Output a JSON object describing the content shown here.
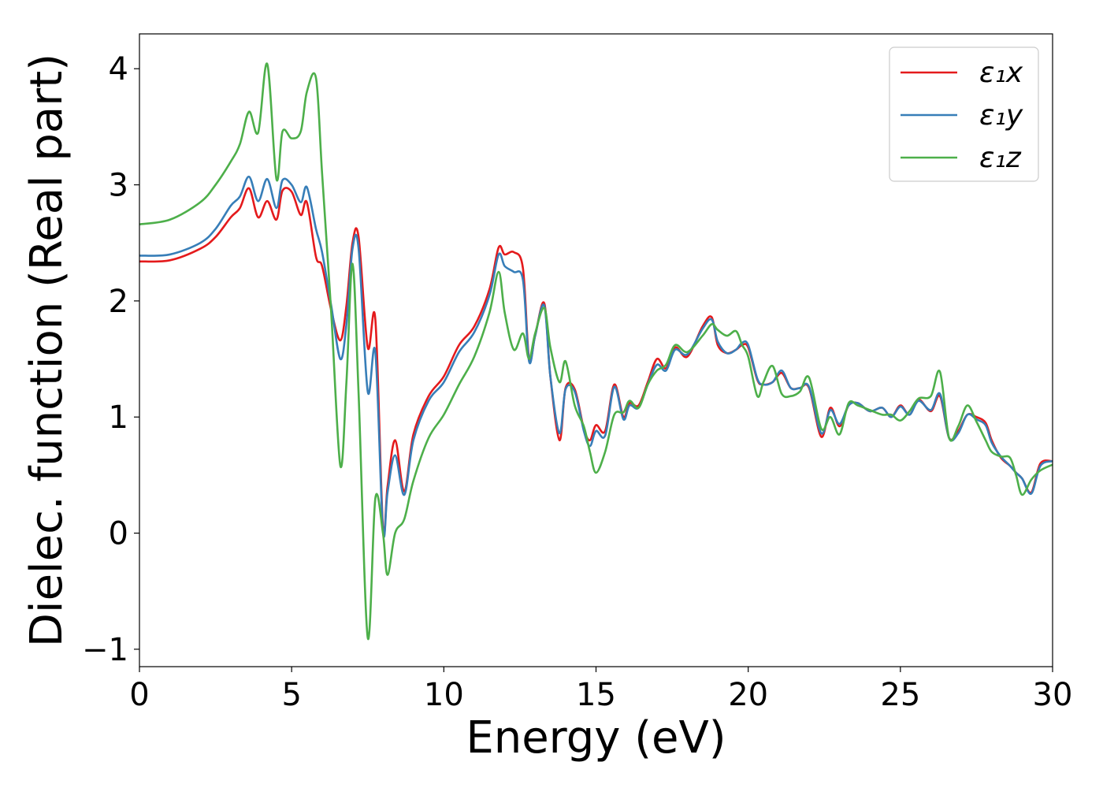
{
  "chart_data": {
    "type": "line",
    "xlabel": "Energy (eV)",
    "ylabel": "Dielec. function (Real part)",
    "xlim": [
      0,
      30
    ],
    "ylim": [
      -1.15,
      4.3
    ],
    "xticks": [
      0,
      5,
      10,
      15,
      20,
      25,
      30
    ],
    "xtick_labels": [
      "0",
      "5",
      "10",
      "15",
      "20",
      "25",
      "30"
    ],
    "yticks": [
      -1,
      0,
      1,
      2,
      3,
      4
    ],
    "ytick_labels": [
      "−1",
      "0",
      "1",
      "2",
      "3",
      "4"
    ],
    "grid": false,
    "legend_position": "top-right",
    "series": [
      {
        "name": "ε₁x",
        "color": "#e41a1c",
        "x": [
          0,
          1,
          2,
          2.5,
          3,
          3.3,
          3.6,
          3.9,
          4.2,
          4.5,
          4.7,
          5.0,
          5.3,
          5.5,
          5.8,
          6.0,
          6.3,
          6.6,
          6.8,
          7.0,
          7.2,
          7.5,
          7.75,
          8.0,
          8.15,
          8.4,
          8.7,
          9.0,
          9.5,
          10,
          10.5,
          11,
          11.5,
          11.8,
          12.0,
          12.3,
          12.6,
          12.8,
          13.0,
          13.3,
          13.5,
          13.8,
          14.0,
          14.3,
          14.6,
          14.8,
          15.0,
          15.3,
          15.6,
          15.9,
          16.1,
          16.4,
          16.7,
          17.0,
          17.3,
          17.6,
          18.0,
          18.5,
          18.8,
          19.0,
          19.3,
          19.6,
          19.8,
          20.0,
          20.3,
          20.5,
          20.8,
          21.1,
          21.4,
          21.7,
          22.0,
          22.4,
          22.7,
          23.0,
          23.3,
          23.6,
          24.0,
          24.4,
          24.7,
          25.0,
          25.3,
          25.6,
          26.0,
          26.3,
          26.6,
          26.9,
          27.2,
          27.5,
          27.8,
          28.0,
          28.3,
          28.6,
          28.8,
          29.0,
          29.3,
          29.6,
          30.0
        ],
        "y": [
          2.34,
          2.35,
          2.45,
          2.55,
          2.72,
          2.8,
          2.97,
          2.72,
          2.86,
          2.7,
          2.95,
          2.94,
          2.74,
          2.85,
          2.38,
          2.3,
          1.92,
          1.66,
          1.96,
          2.5,
          2.55,
          1.6,
          1.84,
          0.05,
          0.4,
          0.8,
          0.36,
          0.85,
          1.18,
          1.35,
          1.62,
          1.78,
          2.1,
          2.46,
          2.4,
          2.42,
          2.28,
          1.5,
          1.7,
          1.98,
          1.35,
          0.8,
          1.25,
          1.24,
          0.9,
          0.8,
          0.93,
          0.88,
          1.28,
          1.0,
          1.12,
          1.1,
          1.3,
          1.5,
          1.42,
          1.6,
          1.52,
          1.78,
          1.86,
          1.62,
          1.55,
          1.58,
          1.62,
          1.6,
          1.32,
          1.28,
          1.3,
          1.38,
          1.25,
          1.25,
          1.25,
          0.83,
          1.08,
          0.92,
          1.1,
          1.12,
          1.05,
          1.08,
          1.0,
          1.1,
          1.02,
          1.15,
          1.05,
          1.18,
          0.82,
          0.88,
          1.02,
          1.0,
          0.95,
          0.8,
          0.65,
          0.58,
          0.52,
          0.47,
          0.35,
          0.6,
          0.62
        ]
      },
      {
        "name": "ε₁y",
        "color": "#377eb8",
        "x": [
          0,
          1,
          2,
          2.5,
          3,
          3.3,
          3.6,
          3.9,
          4.2,
          4.5,
          4.7,
          5.0,
          5.3,
          5.5,
          5.8,
          6.0,
          6.3,
          6.6,
          6.8,
          7.0,
          7.2,
          7.5,
          7.75,
          8.0,
          8.15,
          8.4,
          8.7,
          9.0,
          9.5,
          10,
          10.5,
          11,
          11.5,
          11.8,
          12.0,
          12.3,
          12.6,
          12.8,
          13.0,
          13.3,
          13.5,
          13.8,
          14.0,
          14.3,
          14.6,
          14.8,
          15.0,
          15.3,
          15.6,
          15.9,
          16.1,
          16.4,
          16.7,
          17.0,
          17.3,
          17.6,
          18.0,
          18.5,
          18.8,
          19.0,
          19.3,
          19.6,
          19.8,
          20.0,
          20.3,
          20.5,
          20.8,
          21.1,
          21.4,
          21.7,
          22.0,
          22.4,
          22.7,
          23.0,
          23.3,
          23.6,
          24.0,
          24.4,
          24.7,
          25.0,
          25.3,
          25.6,
          26.0,
          26.3,
          26.6,
          26.9,
          27.2,
          27.5,
          27.8,
          28.0,
          28.3,
          28.6,
          28.8,
          29.0,
          29.3,
          29.6,
          30.0
        ],
        "y": [
          2.39,
          2.4,
          2.5,
          2.62,
          2.82,
          2.9,
          3.07,
          2.86,
          3.05,
          2.8,
          3.04,
          3.0,
          2.85,
          2.98,
          2.62,
          2.42,
          1.96,
          1.5,
          1.8,
          2.45,
          2.45,
          1.22,
          1.56,
          0.02,
          0.35,
          0.67,
          0.33,
          0.8,
          1.14,
          1.3,
          1.56,
          1.73,
          2.05,
          2.4,
          2.3,
          2.25,
          2.18,
          1.48,
          1.7,
          1.96,
          1.35,
          0.86,
          1.24,
          1.22,
          0.88,
          0.75,
          0.88,
          0.84,
          1.26,
          0.98,
          1.1,
          1.08,
          1.28,
          1.45,
          1.4,
          1.58,
          1.54,
          1.76,
          1.84,
          1.65,
          1.55,
          1.58,
          1.64,
          1.62,
          1.33,
          1.28,
          1.3,
          1.4,
          1.25,
          1.25,
          1.26,
          0.86,
          1.06,
          0.94,
          1.1,
          1.12,
          1.05,
          1.08,
          1.0,
          1.09,
          1.02,
          1.14,
          1.06,
          1.2,
          0.82,
          0.86,
          1.02,
          0.98,
          0.93,
          0.78,
          0.66,
          0.58,
          0.52,
          0.47,
          0.34,
          0.58,
          0.62
        ]
      },
      {
        "name": "ε₁z",
        "color": "#4daf4a",
        "x": [
          0,
          1,
          2,
          2.5,
          3,
          3.3,
          3.6,
          3.9,
          4.2,
          4.5,
          4.7,
          5.0,
          5.3,
          5.5,
          5.8,
          6.0,
          6.3,
          6.6,
          6.8,
          7.0,
          7.2,
          7.5,
          7.75,
          8.0,
          8.15,
          8.4,
          8.7,
          9.0,
          9.5,
          10,
          10.5,
          11,
          11.5,
          11.8,
          12.0,
          12.3,
          12.6,
          12.8,
          13.0,
          13.3,
          13.5,
          13.8,
          14.0,
          14.3,
          14.6,
          14.8,
          15.0,
          15.3,
          15.6,
          15.9,
          16.1,
          16.4,
          16.7,
          17.0,
          17.3,
          17.6,
          18.0,
          18.5,
          18.8,
          19.0,
          19.3,
          19.6,
          19.8,
          20.0,
          20.3,
          20.5,
          20.8,
          21.1,
          21.4,
          21.7,
          22.0,
          22.4,
          22.7,
          23.0,
          23.3,
          23.6,
          24.0,
          24.4,
          24.7,
          25.0,
          25.3,
          25.6,
          26.0,
          26.3,
          26.6,
          26.9,
          27.2,
          27.5,
          27.8,
          28.0,
          28.3,
          28.6,
          28.8,
          29.0,
          29.3,
          29.6,
          30.0
        ],
        "y": [
          2.66,
          2.7,
          2.85,
          3.0,
          3.2,
          3.35,
          3.63,
          3.45,
          4.04,
          3.05,
          3.46,
          3.4,
          3.46,
          3.8,
          3.92,
          3.1,
          1.9,
          0.58,
          1.3,
          2.32,
          1.2,
          -0.9,
          0.3,
          0.0,
          -0.36,
          0.0,
          0.12,
          0.45,
          0.82,
          1.02,
          1.28,
          1.52,
          1.9,
          2.25,
          1.9,
          1.58,
          1.72,
          1.5,
          1.72,
          1.94,
          1.6,
          1.3,
          1.48,
          1.1,
          0.92,
          0.7,
          0.52,
          0.7,
          1.02,
          1.04,
          1.14,
          1.08,
          1.28,
          1.4,
          1.45,
          1.62,
          1.56,
          1.7,
          1.8,
          1.75,
          1.7,
          1.74,
          1.62,
          1.52,
          1.18,
          1.3,
          1.44,
          1.2,
          1.18,
          1.22,
          1.34,
          0.9,
          1.0,
          0.85,
          1.12,
          1.1,
          1.06,
          1.02,
          1.02,
          0.97,
          1.05,
          1.16,
          1.18,
          1.39,
          0.82,
          0.92,
          1.1,
          0.96,
          0.8,
          0.7,
          0.66,
          0.65,
          0.5,
          0.33,
          0.46,
          0.54,
          0.59
        ]
      }
    ]
  }
}
